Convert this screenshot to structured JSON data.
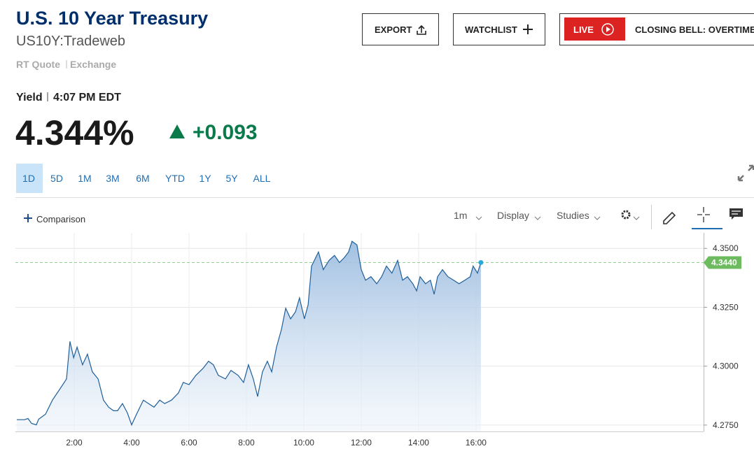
{
  "header": {
    "title": "U.S. 10 Year Treasury",
    "symbol": "US10Y:Tradeweb",
    "quote_type": "RT Quote",
    "exchange": "Exchange"
  },
  "quote": {
    "label": "Yield",
    "time": "4:07 PM EDT",
    "price": "4.344%",
    "change": "+0.093"
  },
  "buttons": {
    "export": "EXPORT",
    "watchlist": "WATCHLIST",
    "live": "LIVE",
    "live_show": "CLOSING BELL: OVERTIME"
  },
  "ranges": [
    "1D",
    "5D",
    "1M",
    "3M",
    "6M",
    "YTD",
    "1Y",
    "5Y",
    "ALL"
  ],
  "toolbar": {
    "comparison": "Comparison",
    "interval": "1m",
    "display": "Display",
    "studies": "Studies"
  },
  "chart_data": {
    "type": "area",
    "color": "#1f5f99",
    "x": [
      0,
      0.27,
      0.39,
      0.51,
      0.68,
      0.76,
      1.0,
      1.24,
      1.49,
      1.73,
      1.85,
      1.98,
      2.1,
      2.29,
      2.46,
      2.63,
      2.83,
      3.02,
      3.2,
      3.37,
      3.51,
      3.68,
      3.85,
      4.0,
      4.17,
      4.41,
      4.59,
      4.78,
      4.98,
      5.15,
      5.39,
      5.63,
      5.8,
      6.0,
      6.24,
      6.49,
      6.68,
      6.85,
      7.02,
      7.27,
      7.46,
      7.71,
      7.9,
      8.07,
      8.24,
      8.39,
      8.56,
      8.73,
      8.88,
      9.05,
      9.22,
      9.37,
      9.54,
      9.71,
      9.85,
      10.02,
      10.15,
      10.27,
      10.39,
      10.51,
      10.68,
      10.88,
      11.07,
      11.24,
      11.41,
      11.56,
      11.68,
      11.85,
      12.0,
      12.15,
      12.34,
      12.54,
      12.71,
      12.88,
      13.07,
      13.27,
      13.44,
      13.61,
      13.8,
      13.93,
      14.05,
      14.24,
      14.41,
      14.54,
      14.66,
      14.83,
      15.02,
      15.22,
      15.41,
      15.61,
      15.8,
      15.9,
      16.05,
      16.17
    ],
    "values": [
      4.2773,
      4.2773,
      4.2778,
      4.2757,
      4.2751,
      4.2775,
      4.2796,
      4.2856,
      4.2901,
      4.2946,
      4.3105,
      4.3036,
      4.3081,
      4.3006,
      4.3051,
      4.2976,
      4.2946,
      4.2856,
      4.2826,
      4.2811,
      4.2811,
      4.2841,
      4.2802,
      4.2751,
      4.2796,
      4.2856,
      4.2841,
      4.2826,
      4.2856,
      4.2841,
      4.2856,
      4.2886,
      4.2931,
      4.2922,
      4.2961,
      4.2991,
      4.3021,
      4.3006,
      4.2961,
      4.2946,
      4.2982,
      4.2961,
      4.2931,
      4.3006,
      4.2946,
      4.2871,
      4.2976,
      4.3021,
      4.2976,
      4.3081,
      4.3156,
      4.3246,
      4.3201,
      4.3231,
      4.329,
      4.3201,
      4.326,
      4.3425,
      4.3455,
      4.3485,
      4.341,
      4.3449,
      4.347,
      4.344,
      4.3461,
      4.3485,
      4.353,
      4.3515,
      4.341,
      4.3365,
      4.338,
      4.335,
      4.338,
      4.3425,
      4.3395,
      4.3449,
      4.3365,
      4.338,
      4.335,
      4.332,
      4.338,
      4.335,
      4.3365,
      4.3305,
      4.338,
      4.341,
      4.338,
      4.3365,
      4.335,
      4.3365,
      4.338,
      4.3425,
      4.3395,
      4.344
    ],
    "xlim": [
      -0.05,
      23.93
    ],
    "ylim": [
      4.2723,
      4.3566
    ],
    "xticks": [
      {
        "value": 2,
        "label": "2:00"
      },
      {
        "value": 4,
        "label": "4:00"
      },
      {
        "value": 6,
        "label": "6:00"
      },
      {
        "value": 8,
        "label": "8:00"
      },
      {
        "value": 10,
        "label": "10:00"
      },
      {
        "value": 12,
        "label": "12:00"
      },
      {
        "value": 14,
        "label": "14:00"
      },
      {
        "value": 16,
        "label": "16:00"
      }
    ],
    "yticks": [
      {
        "value": 4.275,
        "label": "4.2750"
      },
      {
        "value": 4.3,
        "label": "4.3000"
      },
      {
        "value": 4.325,
        "label": "4.3250"
      },
      {
        "value": 4.35,
        "label": "4.3500"
      }
    ],
    "grid": true,
    "last_label": {
      "value": 4.344,
      "label": "4.3440"
    }
  }
}
